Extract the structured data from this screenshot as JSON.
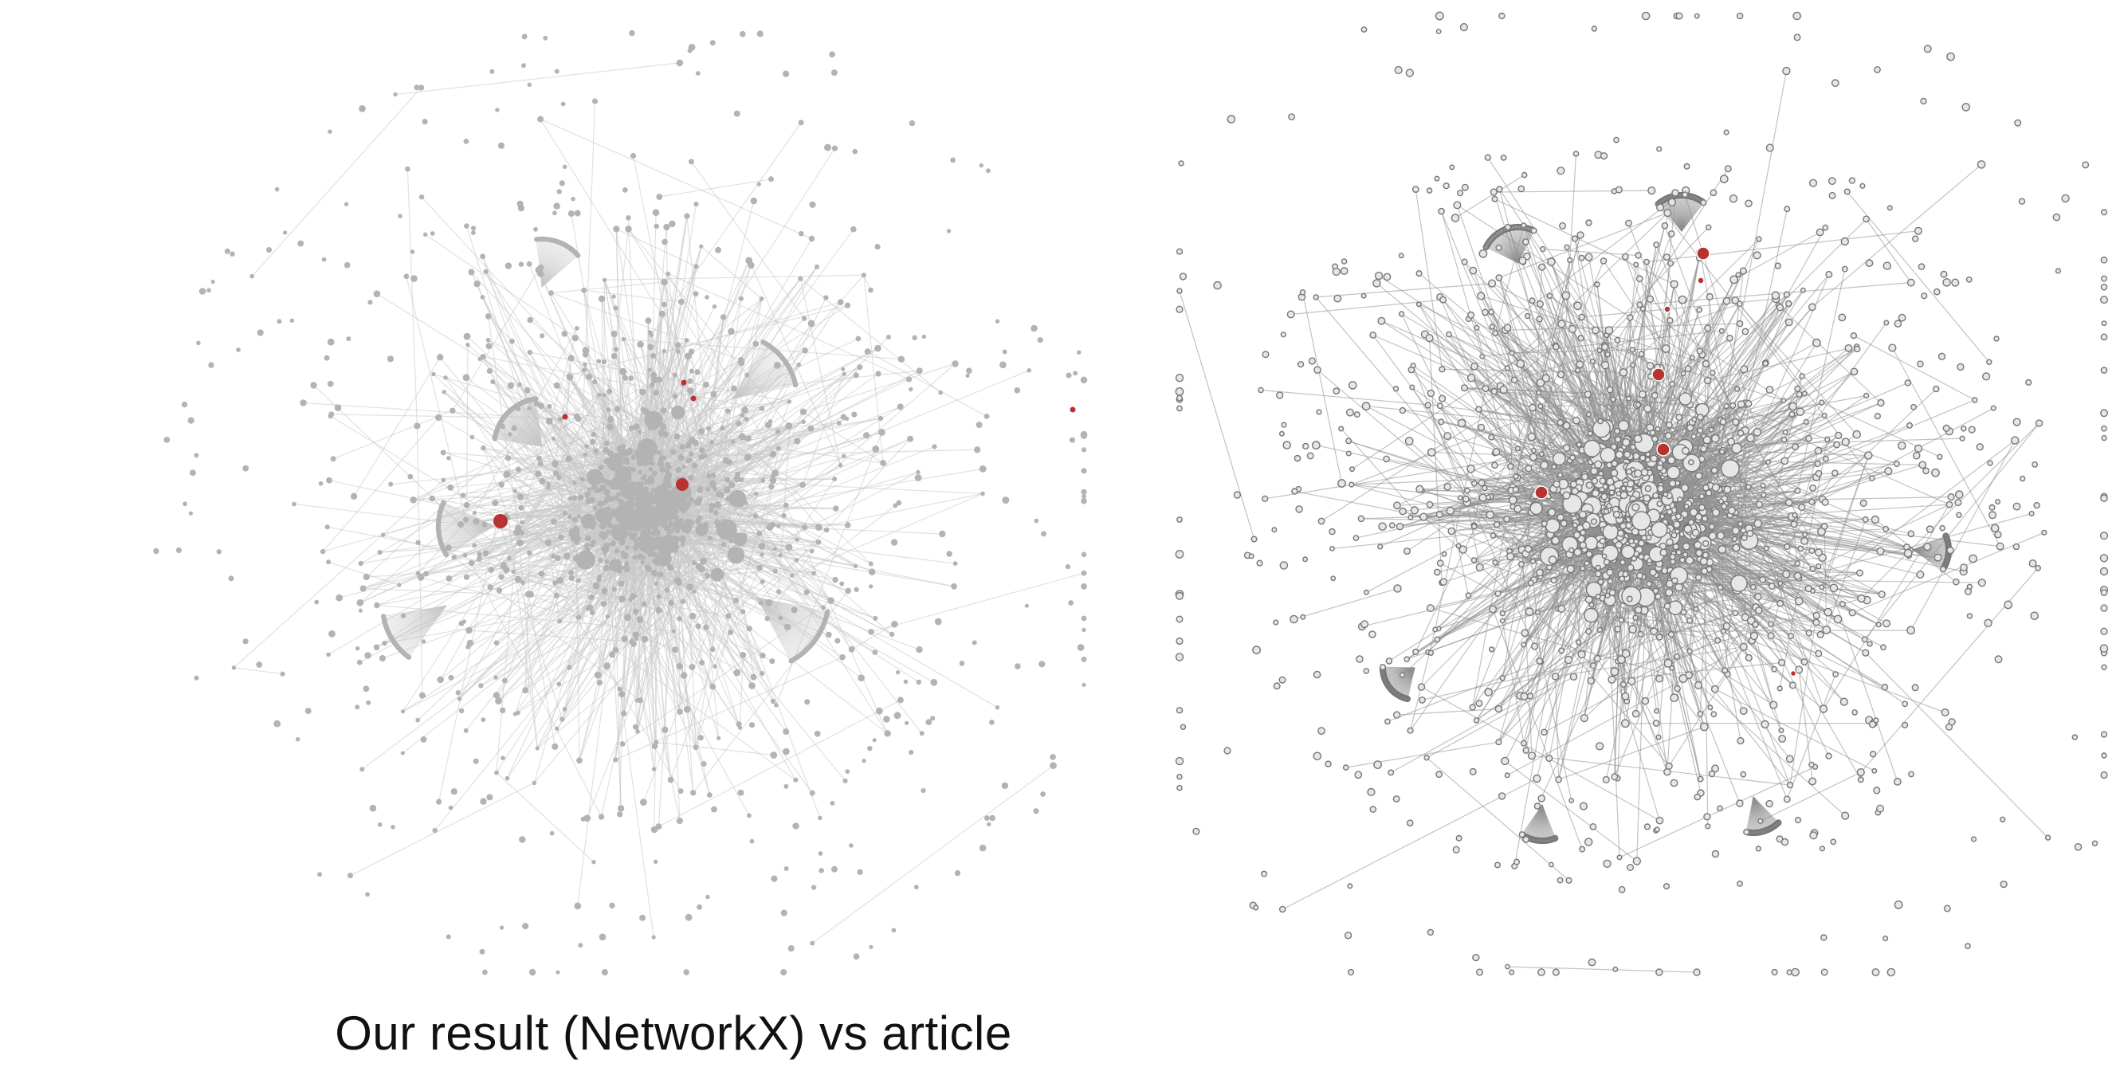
{
  "caption": "Our result (NetworkX) vs article",
  "colors": {
    "left_node": "#b3b3b3",
    "left_edge": "#c8c8c8",
    "right_node_fill": "#e6e6e6",
    "right_node_stroke": "#777777",
    "right_edge": "#8f8f8f",
    "highlight": "#b83232"
  },
  "networks": [
    {
      "name": "networkx-result-graph",
      "style": "flat-grey"
    },
    {
      "name": "article-graph",
      "style": "outlined"
    }
  ]
}
